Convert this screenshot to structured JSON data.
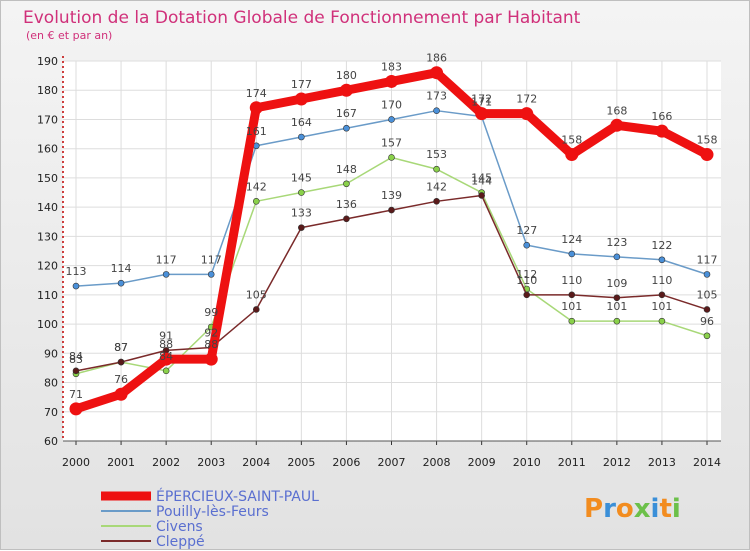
{
  "chart_data": {
    "type": "line",
    "title": "Evolution de la Dotation Globale de Fonctionnement par Habitant",
    "subtitle": "(en € et par an)",
    "categories": [
      "2000",
      "2001",
      "2002",
      "2003",
      "2004",
      "2005",
      "2006",
      "2007",
      "2008",
      "2009",
      "2010",
      "2011",
      "2012",
      "2013",
      "2014"
    ],
    "ylim": [
      60,
      190
    ],
    "yticks": [
      60,
      70,
      80,
      90,
      100,
      110,
      120,
      130,
      140,
      150,
      160,
      170,
      180,
      190
    ],
    "grid": true,
    "series": [
      {
        "name": "Pouilly-lès-Feurs",
        "color": "#6a9bc8",
        "marker": "#4a90d9",
        "values": [
          113,
          114,
          117,
          117,
          161,
          164,
          167,
          170,
          173,
          171,
          127,
          124,
          123,
          122,
          117
        ],
        "labels": [
          "113",
          "114",
          "117",
          "117",
          "161",
          "164",
          "167",
          "170",
          "173",
          "171",
          "127",
          "124",
          "123",
          "122",
          "117"
        ]
      },
      {
        "name": "Civens",
        "color": "#a8d878",
        "marker": "#8ad14a",
        "values": [
          83,
          87,
          84,
          99,
          142,
          145,
          148,
          157,
          153,
          145,
          112,
          101,
          101,
          101,
          96
        ],
        "labels": [
          "83",
          "87",
          "84",
          "99",
          "142",
          "145",
          "148",
          "157",
          "153",
          "145",
          "112",
          "101",
          "101",
          "101",
          "96"
        ]
      },
      {
        "name": "Cleppé",
        "color": "#7a2a2a",
        "marker": "#5a1a1a",
        "values": [
          84,
          87,
          91,
          92,
          105,
          133,
          136,
          139,
          142,
          144,
          110,
          110,
          109,
          110,
          105
        ],
        "labels": [
          "84",
          "87",
          "91",
          "92",
          "105",
          "133",
          "136",
          "139",
          "142",
          "144",
          "110",
          "110",
          "109",
          "110",
          "105"
        ]
      },
      {
        "name": "ÉPERCIEUX-SAINT-PAUL",
        "color": "#ee1111",
        "marker": "#ee1111",
        "values": [
          71,
          76,
          88,
          88,
          174,
          177,
          180,
          183,
          186,
          172,
          172,
          158,
          168,
          166,
          158
        ],
        "labels": [
          "71",
          "76",
          "88",
          "88",
          "174",
          "177",
          "180",
          "183",
          "186",
          "172",
          "172",
          "158",
          "168",
          "166",
          "158"
        ]
      }
    ],
    "legend": [
      "ÉPERCIEUX-SAINT-PAUL",
      "Pouilly-lès-Feurs",
      "Civens",
      "Cleppé"
    ]
  },
  "brand": {
    "letters": [
      "P",
      "r",
      "o",
      "x",
      "i",
      "t",
      "i"
    ],
    "colors": [
      "#f28c1f",
      "#3a8fd8",
      "#f28c1f",
      "#6cc04a",
      "#3a8fd8",
      "#f28c1f",
      "#6cc04a"
    ]
  }
}
